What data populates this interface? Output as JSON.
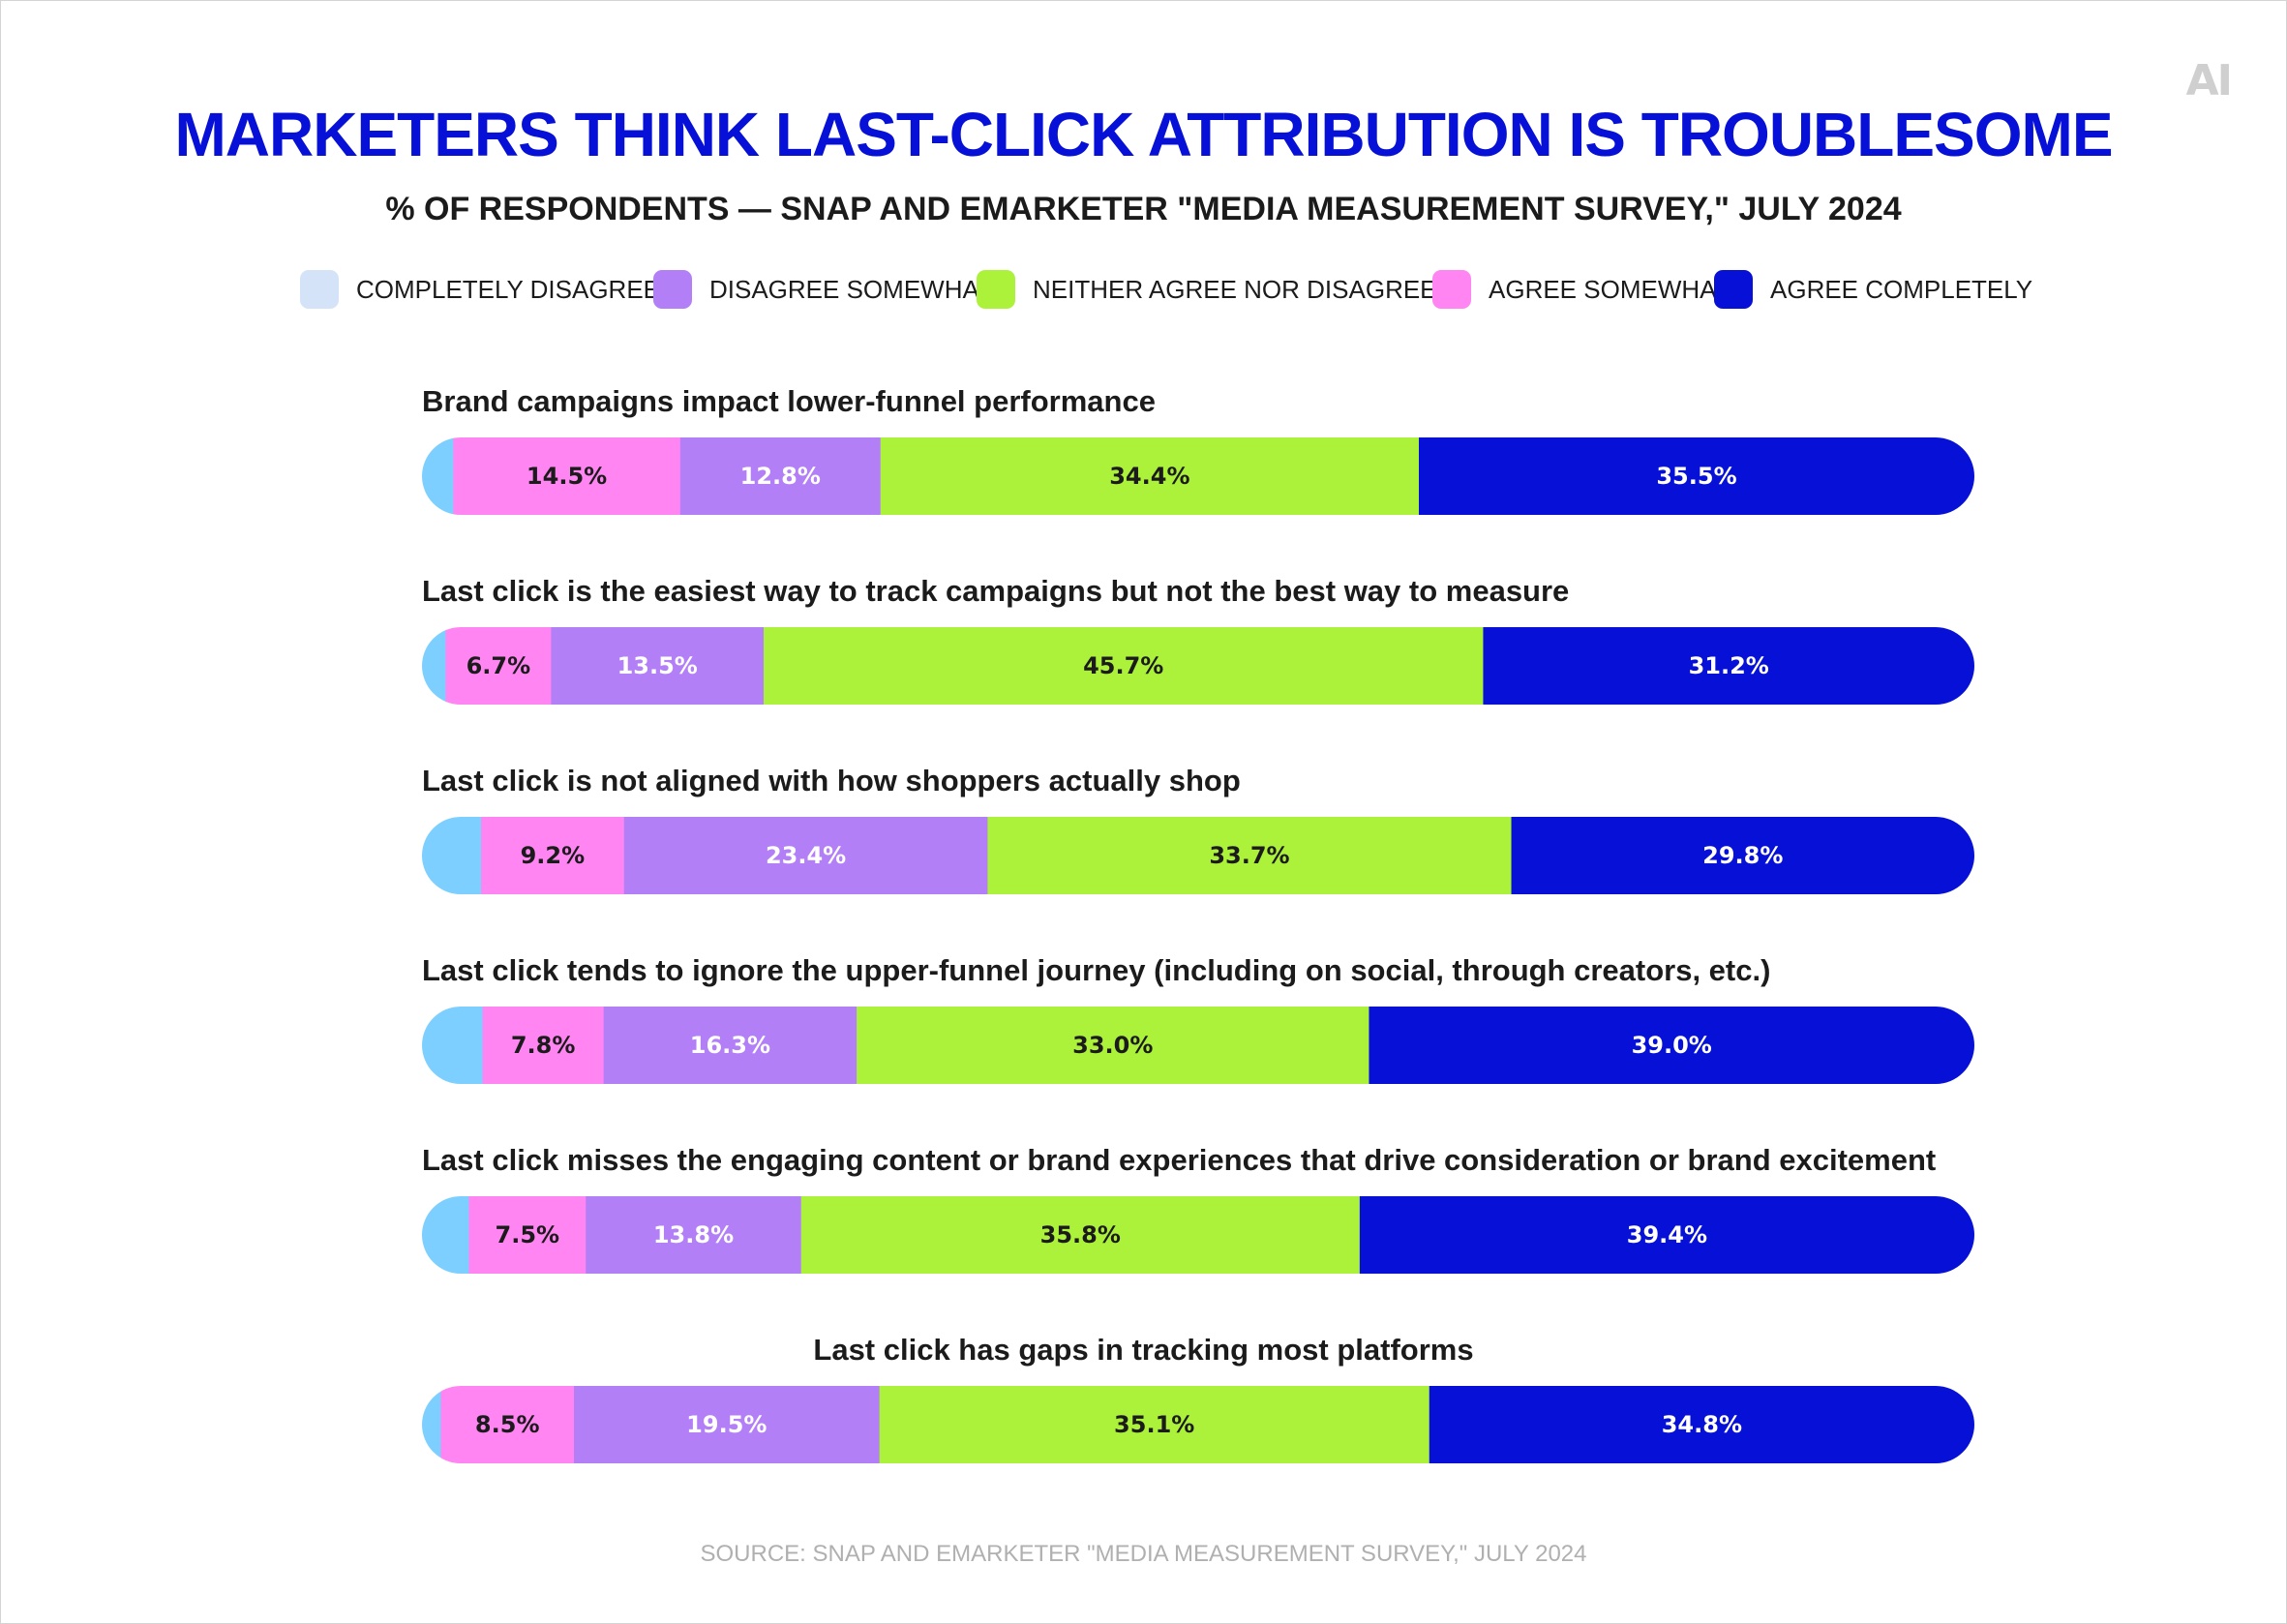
{
  "logo_text": "AI",
  "source": "SOURCE: SNAP AND EMARKETER \"MEDIA MEASUREMENT SURVEY,\" JULY 2024",
  "chart_data": {
    "type": "bar",
    "orientation": "horizontal",
    "stacked": true,
    "title": "MARKETERS THINK LAST-CLICK ATTRIBUTION IS TROUBLESOME",
    "subtitle": "% OF RESPONDENTS — SNAP AND EMARKETER \"MEDIA MEASUREMENT SURVEY,\" JULY 2024",
    "legend_position": "top",
    "legend": [
      {
        "label": "COMPLETELY DISAGREE",
        "color": "#d4e3f8"
      },
      {
        "label": "DISAGREE SOMEWHAT",
        "color": "#b37ff7"
      },
      {
        "label": "NEITHER AGREE NOR DISAGREE",
        "color": "#adf23a"
      },
      {
        "label": "AGREE SOMEWHAT",
        "color": "#ff85f3"
      },
      {
        "label": "AGREE COMPLETELY",
        "color": "#0610d6"
      }
    ],
    "bar_segment_colors": [
      "#7dcfff",
      "#ff85f3",
      "#b37ff7",
      "#adf23a",
      "#0610d6"
    ],
    "bar_segment_label_colors": [
      "#1b1b1b",
      "#1b1b1b",
      "#ffffff",
      "#1b1b1b",
      "#ffffff"
    ],
    "categories": [
      "Brand campaigns impact lower-funnel performance",
      "Last click is the easiest way to track campaigns but not the best way to measure",
      "Last click is not aligned with how shoppers actually shop",
      "Last click tends to ignore the upper-funnel journey (including on social, through creators, etc.)",
      "Last click misses the engaging content or brand experiences that drive consideration or brand excitement",
      "Last click has gaps in tracking most platforms"
    ],
    "rows": [
      {
        "values": [
          2.0,
          14.5,
          12.8,
          34.4,
          35.5
        ],
        "labels": [
          "",
          "14.5%",
          "12.8%",
          "34.4%",
          "35.5%"
        ]
      },
      {
        "values": [
          1.5,
          6.7,
          13.5,
          45.7,
          31.2
        ],
        "labels": [
          "",
          "6.7%",
          "13.5%",
          "45.7%",
          "31.2%"
        ]
      },
      {
        "values": [
          3.8,
          9.2,
          23.4,
          33.7,
          29.8
        ],
        "labels": [
          "",
          "9.2%",
          "23.4%",
          "33.7%",
          "29.8%"
        ]
      },
      {
        "values": [
          3.9,
          7.8,
          16.3,
          33.0,
          39.0
        ],
        "labels": [
          "",
          "7.8%",
          "16.3%",
          "33.0%",
          "39.0%"
        ]
      },
      {
        "values": [
          3.0,
          7.5,
          13.8,
          35.8,
          39.4
        ],
        "labels": [
          "",
          "7.5%",
          "13.8%",
          "35.8%",
          "39.4%"
        ]
      },
      {
        "values": [
          1.2,
          8.5,
          19.5,
          35.1,
          34.8
        ],
        "labels": [
          "",
          "8.5%",
          "19.5%",
          "35.1%",
          "34.8%"
        ]
      }
    ]
  }
}
